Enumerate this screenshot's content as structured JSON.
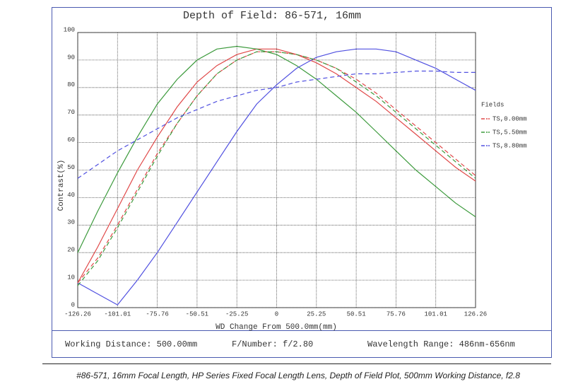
{
  "chart_data": {
    "type": "line",
    "title": "Depth of Field: 86-571, 16mm",
    "x_label": "WD Change From 500.0mm(mm)",
    "y_label": "Contrast(%)",
    "legend_title": "Fields",
    "x": [
      -126.26,
      -113.63,
      -101.01,
      -88.39,
      -75.76,
      -63.13,
      -50.51,
      -37.88,
      -25.25,
      -12.63,
      0,
      12.63,
      25.25,
      37.88,
      50.51,
      63.13,
      75.76,
      88.39,
      101.01,
      113.63,
      126.26
    ],
    "series": [
      {
        "name": "TS,0.00mm",
        "color": "#e04848",
        "values": [
          9,
          22,
          36,
          50,
          62,
          73,
          82,
          88,
          92,
          94,
          94,
          92,
          89,
          85,
          80,
          75,
          69,
          63,
          57,
          51,
          46
        ],
        "sagittal_values": [
          9,
          18,
          30,
          43,
          56,
          67,
          77,
          85,
          90,
          93,
          93,
          92,
          90,
          87,
          83,
          78,
          72,
          66,
          60,
          54,
          48
        ]
      },
      {
        "name": "TS,5.50mm",
        "color": "#3c9a3c",
        "values": [
          20,
          35,
          49,
          62,
          74,
          83,
          90,
          94,
          95,
          94,
          92,
          88,
          83,
          77,
          71,
          64,
          57,
          50,
          44,
          38,
          33
        ],
        "sagittal_values": [
          8,
          17,
          29,
          42,
          55,
          67,
          77,
          85,
          90,
          93,
          93,
          92,
          90,
          87,
          82,
          77,
          71,
          65,
          59,
          53,
          47
        ]
      },
      {
        "name": "TS,8.80mm",
        "color": "#5050e0",
        "values": [
          9,
          5,
          1,
          10,
          20,
          31,
          42,
          53,
          64,
          74,
          81,
          87,
          91,
          93,
          94,
          94,
          93,
          90,
          87,
          83,
          79
        ],
        "sagittal_values": [
          47,
          52,
          57,
          61,
          65,
          69,
          72,
          75,
          77,
          79,
          80,
          82,
          83,
          84,
          85,
          85,
          85.5,
          86,
          86,
          85.5,
          85.5
        ]
      }
    ],
    "xlim": [
      -126.26,
      126.26
    ],
    "xticks": [
      -126.26,
      -101.01,
      -75.76,
      -50.51,
      -25.25,
      0,
      25.25,
      50.51,
      75.76,
      101.01,
      126.26
    ],
    "ylim": [
      0,
      100
    ],
    "yticks": [
      0,
      10,
      20,
      30,
      40,
      50,
      60,
      70,
      80,
      90,
      100
    ],
    "grid": true,
    "legend_position": "right"
  },
  "info": {
    "working_distance": "Working Distance: 500.00mm",
    "f_number": "F/Number: f/2.80",
    "wavelength": "Wavelength Range: 486nm-656nm"
  },
  "caption": "#86-571, 16mm Focal Length, HP Series Fixed Focal Length Lens, Depth of Field Plot, 500mm Working Distance, f2.8"
}
